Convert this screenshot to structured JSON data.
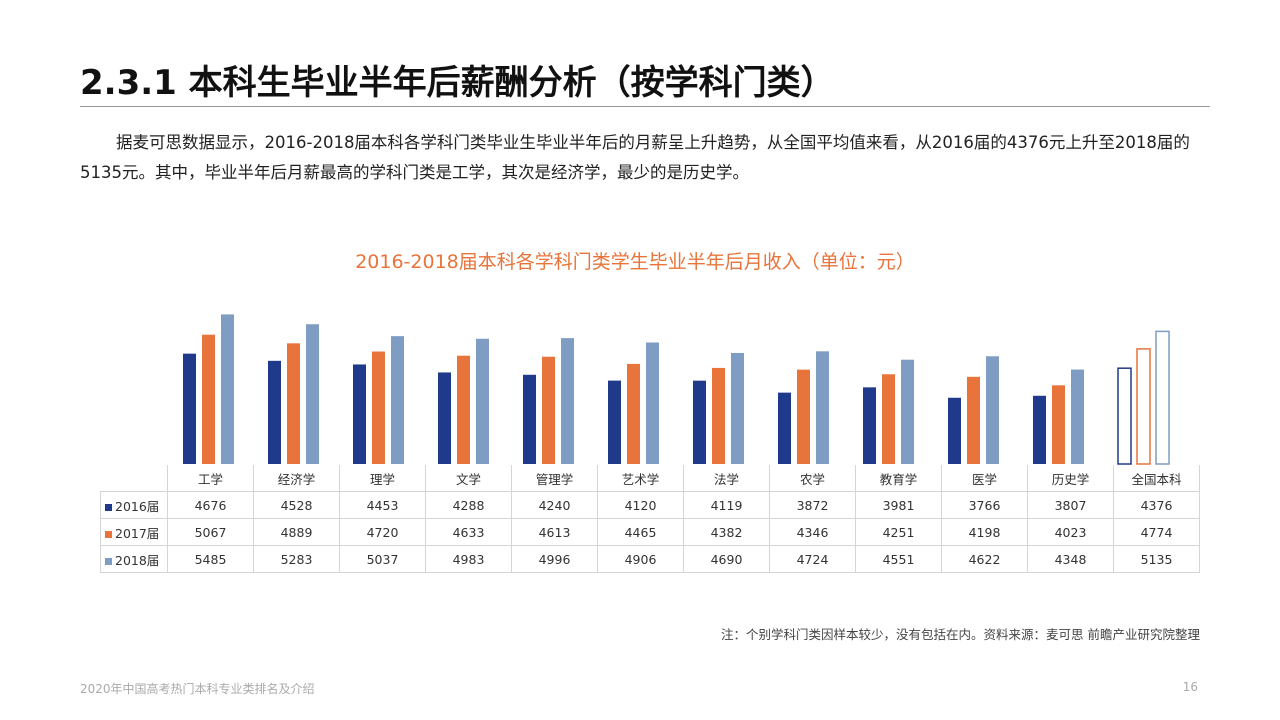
{
  "slide": {
    "title": "2.3.1 本科生毕业半年后薪酬分析（按学科门类）",
    "paragraph": "据麦可思数据显示，2016-2018届本科各学科门类毕业生毕业半年后的月薪呈上升趋势，从全国平均值来看，从2016届的4376元上升至2018届的5135元。其中，毕业半年后月薪最高的学科门类是工学，其次是经济学，最少的是历史学。",
    "note": "注：个别学科门类因样本较少，没有包括在内。资料来源：麦可思 前瞻产业研究院整理",
    "footer": "2020年中国高考热门本科专业类排名及介绍",
    "page_number": "16"
  },
  "chart_data": {
    "type": "bar",
    "title": "2016-2018届本科各学科门类学生毕业半年后月收入（单位：元）",
    "categories": [
      "工学",
      "经济学",
      "理学",
      "文学",
      "管理学",
      "艺术学",
      "法学",
      "农学",
      "教育学",
      "医学",
      "历史学",
      "全国本科"
    ],
    "series": [
      {
        "name": "2016届",
        "color": "#1F3A8A",
        "values": [
          4676,
          4528,
          4453,
          4288,
          4240,
          4120,
          4119,
          3872,
          3981,
          3766,
          3807,
          4376
        ]
      },
      {
        "name": "2017届",
        "color": "#E8743B",
        "values": [
          5067,
          4889,
          4720,
          4633,
          4613,
          4465,
          4382,
          4346,
          4251,
          4198,
          4023,
          4774
        ]
      },
      {
        "name": "2018届",
        "color": "#7F9CC2",
        "values": [
          5485,
          5283,
          5037,
          4983,
          4996,
          4906,
          4690,
          4724,
          4551,
          4622,
          4348,
          5135
        ]
      }
    ],
    "outlined_categories": [
      "全国本科"
    ],
    "legend_position": "in-table-left",
    "grid": false
  }
}
